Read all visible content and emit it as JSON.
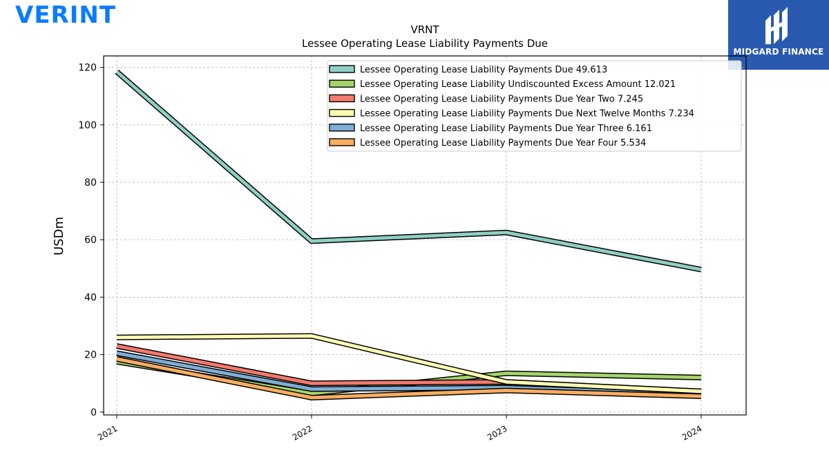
{
  "brand": {
    "left_logo_text": "VERINT",
    "right_logo_text": "MIDGARD FINANCE",
    "left_color": "#0a7cff",
    "right_bg": "#2a5ab0"
  },
  "chart_data": {
    "type": "line",
    "title": "VRNT",
    "subtitle": "Lessee Operating Lease Liability Payments Due",
    "ylabel": "USDm",
    "xlabel": "",
    "categories": [
      "2021",
      "2022",
      "2023",
      "2024"
    ],
    "yticks": [
      "0",
      "20",
      "40",
      "60",
      "80",
      "100",
      "120"
    ],
    "ylim": [
      -1,
      124
    ],
    "grid": true,
    "legend_position": "top-right",
    "series": [
      {
        "name": "Lessee Operating Lease Liability Payments Due  49.613",
        "color": "#8ecfc2",
        "values": [
          118.5,
          59.5,
          62.5,
          49.6
        ]
      },
      {
        "name": "Lessee Operating Lease Liability Undiscounted Excess Amount  12.021",
        "color": "#a6d46a",
        "values": [
          17.5,
          6.5,
          13.5,
          12.0
        ]
      },
      {
        "name": "Lessee Operating Lease Liability Payments Due Year Two  7.245",
        "color": "#f5796c",
        "values": [
          23.0,
          10.0,
          10.5,
          7.2
        ]
      },
      {
        "name": "Lessee Operating Lease Liability Payments Due Next Twelve Months  7.234",
        "color": "#ffffb3",
        "values": [
          26.0,
          26.5,
          10.5,
          7.2
        ]
      },
      {
        "name": "Lessee Operating Lease Liability Payments Due Year Three  6.161",
        "color": "#7eaed6",
        "values": [
          20.5,
          8.0,
          8.5,
          6.2
        ]
      },
      {
        "name": "Lessee Operating Lease Liability Payments Due Year Four  5.534",
        "color": "#fbad5e",
        "values": [
          18.5,
          5.0,
          7.5,
          5.5
        ]
      }
    ]
  }
}
